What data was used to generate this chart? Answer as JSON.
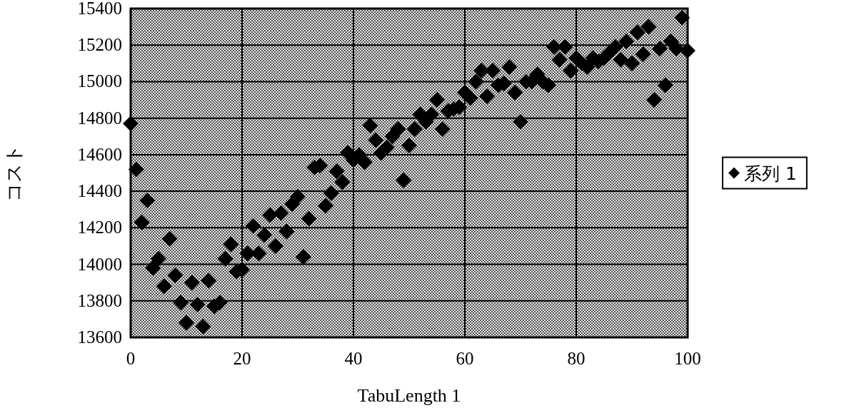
{
  "chart_data": {
    "type": "scatter",
    "xlabel": "TabuLength 1",
    "ylabel": "コスト",
    "xlim": [
      0,
      100
    ],
    "ylim": [
      13600,
      15400
    ],
    "xticks": [
      0,
      20,
      40,
      60,
      80,
      100
    ],
    "yticks": [
      13600,
      13800,
      14000,
      14200,
      14400,
      14600,
      14800,
      15000,
      15200,
      15400
    ],
    "grid": true,
    "legend": "right",
    "marker": "diamond",
    "x": [
      0,
      1,
      2,
      3,
      4,
      5,
      6,
      7,
      8,
      9,
      10,
      11,
      12,
      13,
      14,
      15,
      16,
      17,
      18,
      19,
      20,
      21,
      22,
      23,
      24,
      25,
      26,
      27,
      28,
      29,
      30,
      31,
      32,
      33,
      34,
      35,
      36,
      37,
      38,
      39,
      40,
      41,
      42,
      43,
      44,
      45,
      46,
      47,
      48,
      49,
      50,
      51,
      52,
      53,
      54,
      55,
      56,
      57,
      58,
      59,
      60,
      61,
      62,
      63,
      64,
      65,
      66,
      67,
      68,
      69,
      70,
      71,
      72,
      73,
      74,
      75,
      76,
      77,
      78,
      79,
      80,
      81,
      82,
      83,
      84,
      85,
      86,
      87,
      88,
      89,
      90,
      91,
      92,
      93,
      94,
      95,
      96,
      97,
      98,
      99,
      100
    ],
    "series": [
      {
        "name": "系列 1",
        "color": "#000000",
        "values": [
          14770,
          14520,
          14230,
          14350,
          13980,
          14030,
          13880,
          14140,
          13940,
          13790,
          13680,
          13900,
          13780,
          13660,
          13910,
          13770,
          13790,
          14030,
          14110,
          13960,
          13970,
          14060,
          14210,
          14060,
          14160,
          14270,
          14100,
          14280,
          14180,
          14330,
          14370,
          14040,
          14250,
          14530,
          14540,
          14320,
          14390,
          14510,
          14450,
          14610,
          14570,
          14600,
          14560,
          14760,
          14680,
          14610,
          14640,
          14700,
          14740,
          14460,
          14650,
          14740,
          14820,
          14780,
          14820,
          14900,
          14740,
          14840,
          14850,
          14860,
          14940,
          14910,
          15000,
          15060,
          14920,
          15060,
          14980,
          14990,
          15080,
          14940,
          14780,
          15000,
          15000,
          15040,
          15000,
          14980,
          15190,
          15120,
          15190,
          15060,
          15130,
          15100,
          15080,
          15130,
          15110,
          15130,
          15160,
          15190,
          15120,
          15220,
          15100,
          15270,
          15150,
          15300,
          14900,
          15180,
          14980,
          15220,
          15180,
          15350,
          15170
        ]
      }
    ]
  }
}
